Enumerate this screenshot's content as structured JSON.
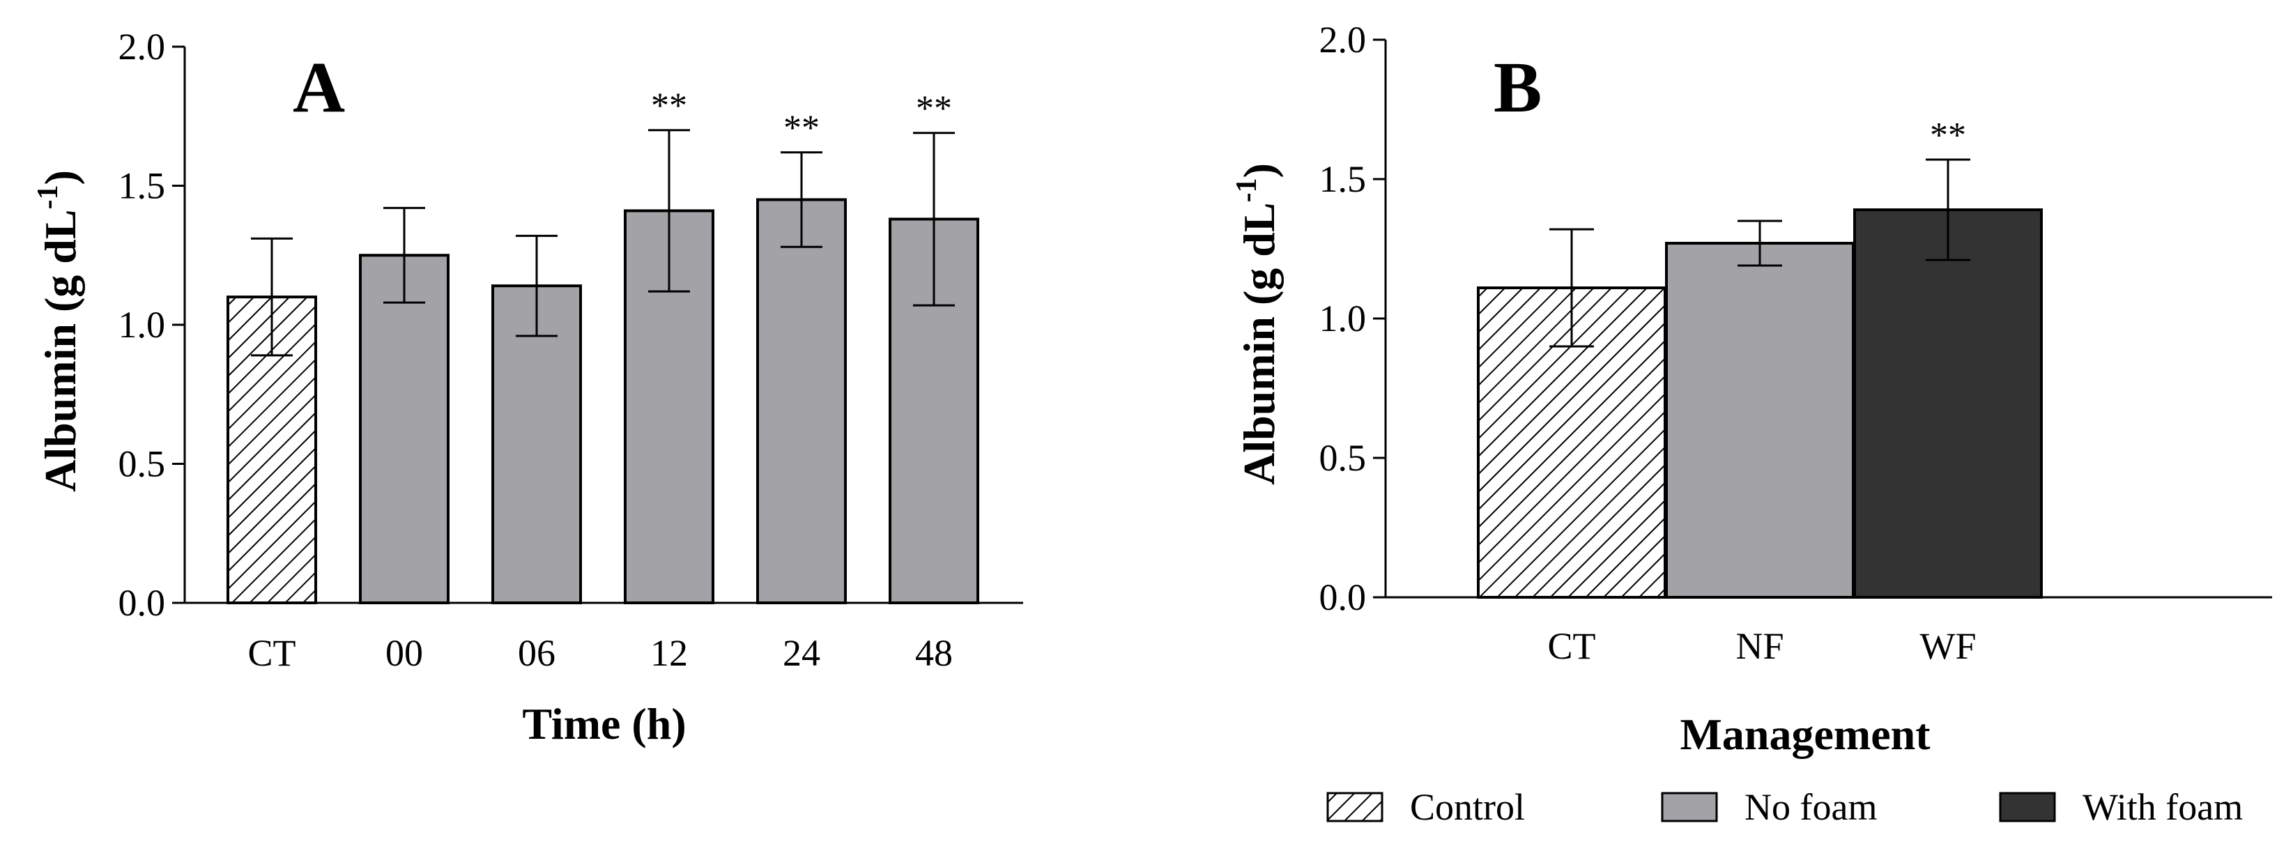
{
  "chart_data": [
    {
      "type": "bar",
      "panel_label": "A",
      "title": "",
      "xlabel": "Time (h)",
      "ylabel_main": "Albumin (g dL",
      "ylabel_sup": "-1",
      "ylabel_close": ")",
      "ylim": [
        0,
        2.0
      ],
      "yticks": [
        "0.0",
        "0.5",
        "1.0",
        "1.5",
        "2.0"
      ],
      "categories": [
        "CT",
        "00",
        "06",
        "12",
        "24",
        "48"
      ],
      "values": [
        1.1,
        1.25,
        1.14,
        1.41,
        1.45,
        1.38
      ],
      "error": [
        0.21,
        0.17,
        0.18,
        0.29,
        0.17,
        0.31
      ],
      "fills": [
        "hatch",
        "gray",
        "gray",
        "gray",
        "gray",
        "gray"
      ],
      "annotations": [
        "",
        "",
        "",
        "**",
        "**",
        "**"
      ]
    },
    {
      "type": "bar",
      "panel_label": "B",
      "title": "",
      "xlabel": "Management",
      "ylabel_main": "Albumin (g dL",
      "ylabel_sup": "-1",
      "ylabel_close": ")",
      "ylim": [
        0,
        2.0
      ],
      "yticks": [
        "0.0",
        "0.5",
        "1.0",
        "1.5",
        "2.0"
      ],
      "categories": [
        "CT",
        "NF",
        "WF"
      ],
      "values": [
        1.11,
        1.27,
        1.39
      ],
      "error": [
        0.21,
        0.08,
        0.18
      ],
      "fills": [
        "hatch",
        "gray",
        "dark"
      ],
      "annotations": [
        "",
        "",
        "**"
      ],
      "legend": [
        {
          "label": "Control",
          "fill": "hatch"
        },
        {
          "label": "No foam",
          "fill": "gray"
        },
        {
          "label": "With foam",
          "fill": "dark"
        }
      ],
      "legend_position": "bottom"
    }
  ],
  "colors": {
    "gray": "#a3a3a7",
    "dark": "#333333",
    "hatch_bg": "#ffffff",
    "line": "#000000"
  }
}
